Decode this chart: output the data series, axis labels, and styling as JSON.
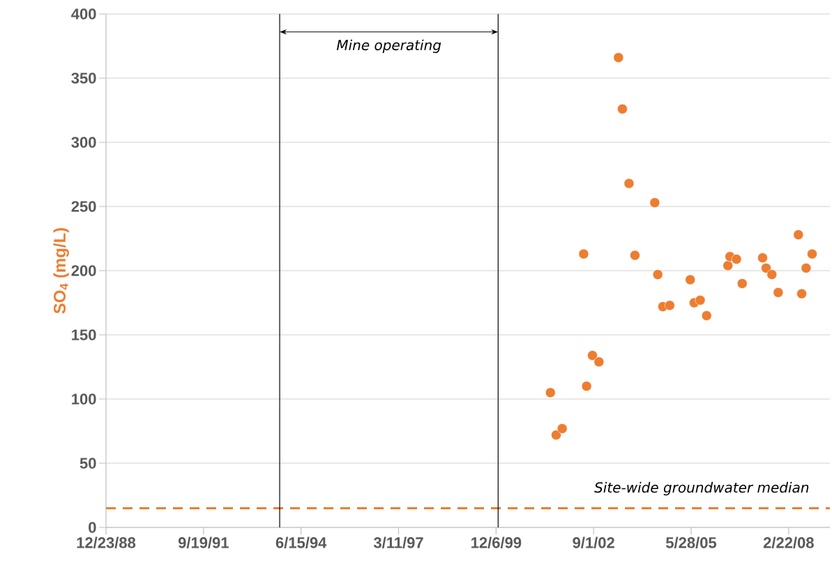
{
  "chart_data": {
    "type": "scatter",
    "ylabel": "SO$_{4}$ (mg/L)",
    "color": "#ed7d31",
    "grid": "y",
    "x": [
      "2001-06-15",
      "2001-08-13",
      "2001-10-14",
      "2002-05-22",
      "2002-06-21",
      "2002-08-20",
      "2002-10-26",
      "2003-05-14",
      "2003-06-23",
      "2003-08-30",
      "2003-10-30",
      "2004-05-20",
      "2004-06-20",
      "2004-08-11",
      "2004-10-21",
      "2005-05-19",
      "2005-06-28",
      "2005-08-29",
      "2005-11-03",
      "2006-06-09",
      "2006-06-30",
      "2006-09-05",
      "2006-11-03",
      "2007-05-31",
      "2007-07-06",
      "2007-09-03",
      "2007-11-07",
      "2008-06-01",
      "2008-07-05",
      "2008-08-19",
      "2008-10-20"
    ],
    "values": [
      105,
      72,
      77,
      213,
      110,
      134,
      129,
      366,
      326,
      268,
      212,
      253,
      197,
      172,
      173,
      193,
      175,
      177,
      165,
      204,
      211,
      209,
      190,
      210,
      202,
      197,
      183,
      228,
      182,
      202,
      213
    ],
    "xlim": [
      "1988-12-23",
      "2009-04-20"
    ],
    "xticks": [
      {
        "value": "1988-12-23",
        "label": "12/23/88"
      },
      {
        "value": "1991-09-19",
        "label": "9/19/91"
      },
      {
        "value": "1994-06-15",
        "label": "6/15/94"
      },
      {
        "value": "1997-03-11",
        "label": "3/11/97"
      },
      {
        "value": "1999-12-06",
        "label": "12/6/99"
      },
      {
        "value": "2002-09-01",
        "label": "9/1/02"
      },
      {
        "value": "2005-05-28",
        "label": "5/28/05"
      },
      {
        "value": "2008-02-22",
        "label": "2/22/08"
      }
    ],
    "ylim": [
      0,
      400
    ],
    "yticks": [
      0,
      50,
      100,
      150,
      200,
      250,
      300,
      350,
      400
    ],
    "ref_lines": [
      {
        "axis": "y",
        "value": 15,
        "label": "Site-wide groundwater median",
        "color": "#ed7d31",
        "line_style": "dashed"
      },
      {
        "axis": "x",
        "value": "1993-11-08",
        "color": "#000000"
      },
      {
        "axis": "x",
        "value": "1999-12-27",
        "color": "#000000"
      }
    ],
    "annotations": [
      "Mine operating"
    ]
  }
}
